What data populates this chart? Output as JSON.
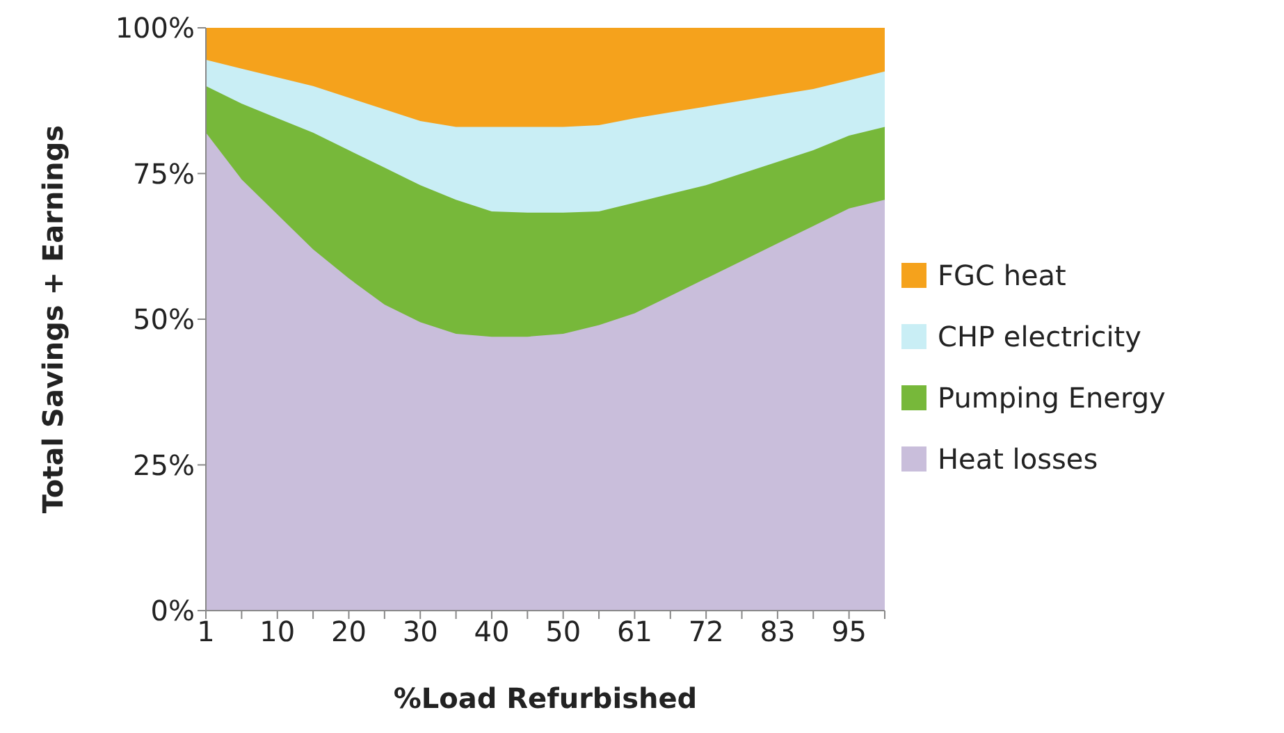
{
  "chart_data": {
    "type": "area",
    "stacked": true,
    "xlabel": "%Load Refurbished",
    "ylabel": "Total Savings + Earnings",
    "categories": [
      "1",
      null,
      "10",
      null,
      "20",
      null,
      "30",
      null,
      "40",
      null,
      "50",
      null,
      "61",
      null,
      "72",
      null,
      "83",
      null,
      "95",
      null
    ],
    "ylim": [
      0,
      100
    ],
    "yticks": [
      {
        "value": 0,
        "label": "0%"
      },
      {
        "value": 25,
        "label": "25%"
      },
      {
        "value": 50,
        "label": "50%"
      },
      {
        "value": 75,
        "label": "75%"
      },
      {
        "value": 100,
        "label": "100%"
      }
    ],
    "grid": false,
    "legend": "right",
    "series": [
      {
        "name": "Heat losses",
        "color": "#c9bedb",
        "values": [
          82,
          74,
          68,
          62,
          57,
          52.5,
          49.5,
          47.5,
          47,
          47,
          47.5,
          49,
          51,
          54,
          57,
          60,
          63,
          66,
          69,
          70.5
        ]
      },
      {
        "name": "Pumping Energy",
        "color": "#77b83a",
        "values": [
          8,
          13,
          16.5,
          20,
          22,
          23.5,
          23.5,
          23,
          21.5,
          21.3,
          20.8,
          19.5,
          19,
          17.5,
          16,
          15,
          14,
          13,
          12.5,
          12.5
        ]
      },
      {
        "name": "CHP electricity",
        "color": "#c9eef5",
        "values": [
          4.5,
          6,
          7,
          8,
          9,
          10,
          11,
          12.5,
          14.5,
          14.7,
          14.7,
          14.8,
          14.5,
          14,
          13.5,
          12.5,
          11.5,
          10.5,
          9.5,
          9.5
        ]
      },
      {
        "name": "FGC heat",
        "color": "#f5a21c",
        "values": [
          5.5,
          7,
          8.5,
          10,
          12,
          14,
          16,
          17,
          17,
          17,
          17,
          16.7,
          15.5,
          14.5,
          13.5,
          12.5,
          11.5,
          10.5,
          9,
          7.5
        ]
      }
    ]
  }
}
